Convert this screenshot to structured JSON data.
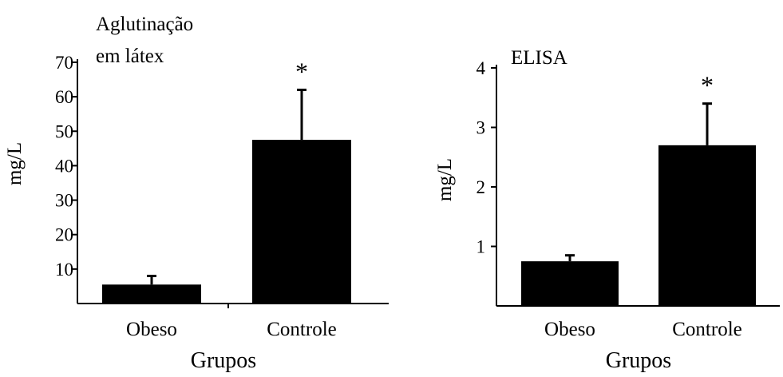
{
  "chart_data": [
    {
      "type": "bar",
      "title_lines": [
        "Aglutinação",
        "em látex"
      ],
      "xlabel": "Grupos",
      "ylabel": "mg/L",
      "categories": [
        "Obeso",
        "Controle"
      ],
      "values": [
        5.5,
        47.5
      ],
      "errors": [
        2.5,
        14.5
      ],
      "significance": [
        "",
        "*"
      ],
      "ylim": [
        0,
        70
      ],
      "yticks": [
        10,
        20,
        30,
        40,
        50,
        60,
        70
      ],
      "bar_color": "#000000",
      "grid": false
    },
    {
      "type": "bar",
      "title_lines": [
        "ELISA"
      ],
      "xlabel": "Grupos",
      "ylabel": "mg/L",
      "categories": [
        "Obeso",
        "Controle"
      ],
      "values": [
        0.75,
        2.7
      ],
      "errors": [
        0.1,
        0.7
      ],
      "significance": [
        "",
        "*"
      ],
      "ylim": [
        0,
        4
      ],
      "yticks": [
        1,
        2,
        3,
        4
      ],
      "bar_color": "#000000",
      "grid": false
    }
  ]
}
